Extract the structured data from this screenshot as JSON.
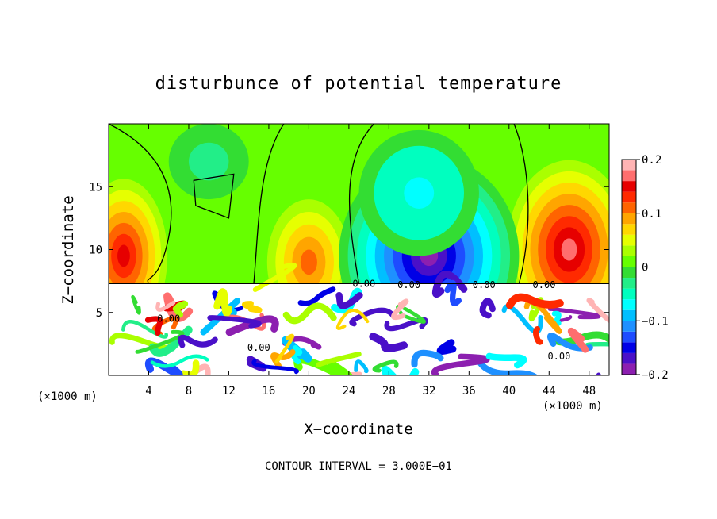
{
  "chart_data": {
    "type": "heatmap",
    "title": "disturbunce of potential temperature",
    "xlabel": "X−coordinate",
    "ylabel": "Z−coordinate",
    "x_scale_note": "(×1000 m)",
    "x_scale_note_right": "(×1000 m)",
    "xlim": [
      0,
      50
    ],
    "ylim": [
      0,
      20
    ],
    "x_ticks": [
      4,
      8,
      12,
      16,
      20,
      24,
      28,
      32,
      36,
      40,
      44,
      48
    ],
    "x_tick_labels": [
      "4",
      "8",
      "12",
      "16",
      "20",
      "24",
      "28",
      "32",
      "36",
      "40",
      "44",
      "48"
    ],
    "y_ticks": [
      5,
      10,
      15
    ],
    "y_tick_labels": [
      "5",
      "10",
      "15"
    ],
    "colorbar": {
      "range": [
        -0.2,
        0.2
      ],
      "ticks": [
        0.2,
        0.1,
        0,
        -0.1,
        -0.2
      ],
      "tick_labels": [
        "0.2",
        "0.1",
        "0",
        "−0.1",
        "−0.2"
      ],
      "colors": [
        "#8c1fb0",
        "#4a10c8",
        "#0000e6",
        "#1e4cff",
        "#1e90ff",
        "#00bfff",
        "#00ffff",
        "#00ffbf",
        "#22ee88",
        "#33dd33",
        "#66ff00",
        "#aaff00",
        "#e6ff00",
        "#ffd700",
        "#ffa500",
        "#ff6400",
        "#ff2a00",
        "#e60000",
        "#ff6e6e",
        "#ffb4b4"
      ]
    },
    "contour_labels": [
      "0.00",
      "0.00",
      "0.00",
      "0.00",
      "0.00",
      "0.00",
      "0.00"
    ],
    "contour_interval_text": "CONTOUR INTERVAL = 3.000E−01",
    "regions": [
      {
        "x": [
          0,
          50
        ],
        "z": [
          7.3,
          20
        ],
        "description": "upper layer, smooth field near 0 with warm anomalies near x=0, 20 and 46 and a cold core near x=32"
      },
      {
        "x": [
          0,
          50
        ],
        "z": [
          0,
          7.3
        ],
        "description": "lower layer, turbulent small-scale structure with values beyond colorbar range"
      }
    ],
    "anomalies": [
      {
        "x": 1.5,
        "z": 9.5,
        "value": 0.15
      },
      {
        "x": 20,
        "z": 9,
        "value": 0.11
      },
      {
        "x": 46,
        "z": 10,
        "value": 0.17
      },
      {
        "x": 32,
        "z": 9.5,
        "value": -0.19
      },
      {
        "x": 31,
        "z": 14.5,
        "value": -0.08
      },
      {
        "x": 10,
        "z": 17,
        "value": -0.03
      }
    ]
  }
}
